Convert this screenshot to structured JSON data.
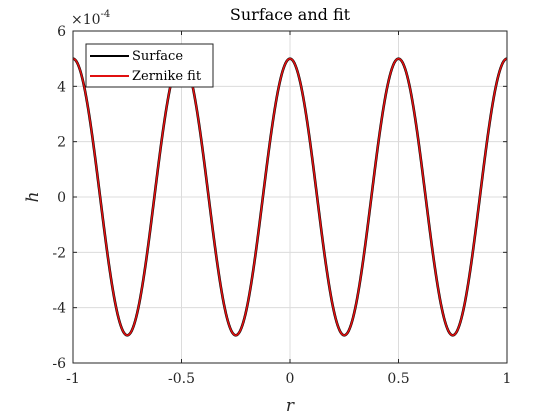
{
  "chart_data": {
    "type": "line",
    "title": "Surface and fit",
    "xlabel": "r",
    "ylabel": "h",
    "xlim": [
      -1,
      1
    ],
    "ylim": [
      -0.0006,
      0.0006
    ],
    "y_exponent_base": "×10",
    "y_exponent_power": "-4",
    "x_ticks": [
      -1,
      -0.5,
      0,
      0.5,
      1
    ],
    "x_tick_labels": [
      "-1",
      "-0.5",
      "0",
      "0.5",
      "1"
    ],
    "y_ticks": [
      -6,
      -4,
      -2,
      0,
      2,
      4,
      6
    ],
    "y_tick_labels": [
      "-6",
      "-4",
      "-2",
      "0",
      "2",
      "4",
      "6"
    ],
    "grid": true,
    "legend_position": "top-left",
    "series": [
      {
        "name": "Surface",
        "color": "#000000",
        "function": "0.0005*cos(4*pi*r)"
      },
      {
        "name": "Zernike fit",
        "color": "#e01010",
        "function": "0.0005*cos(4*pi*r)"
      }
    ]
  }
}
